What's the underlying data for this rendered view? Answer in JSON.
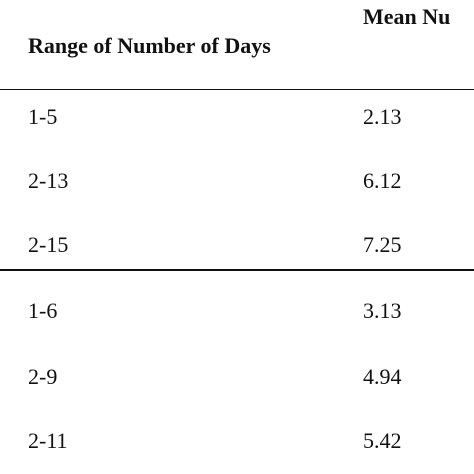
{
  "table": {
    "headers": [
      "Range of Number of Days",
      "Mean Nu"
    ],
    "groups": [
      {
        "rows": [
          {
            "range": "1-5",
            "mean": "2.13"
          },
          {
            "range": "2-13",
            "mean": "6.12"
          },
          {
            "range": "2-15",
            "mean": "7.25"
          }
        ]
      },
      {
        "rows": [
          {
            "range": "1-6",
            "mean": "3.13"
          },
          {
            "range": "2-9",
            "mean": "4.94"
          },
          {
            "range": "2-11",
            "mean": "5.42"
          }
        ]
      }
    ]
  }
}
